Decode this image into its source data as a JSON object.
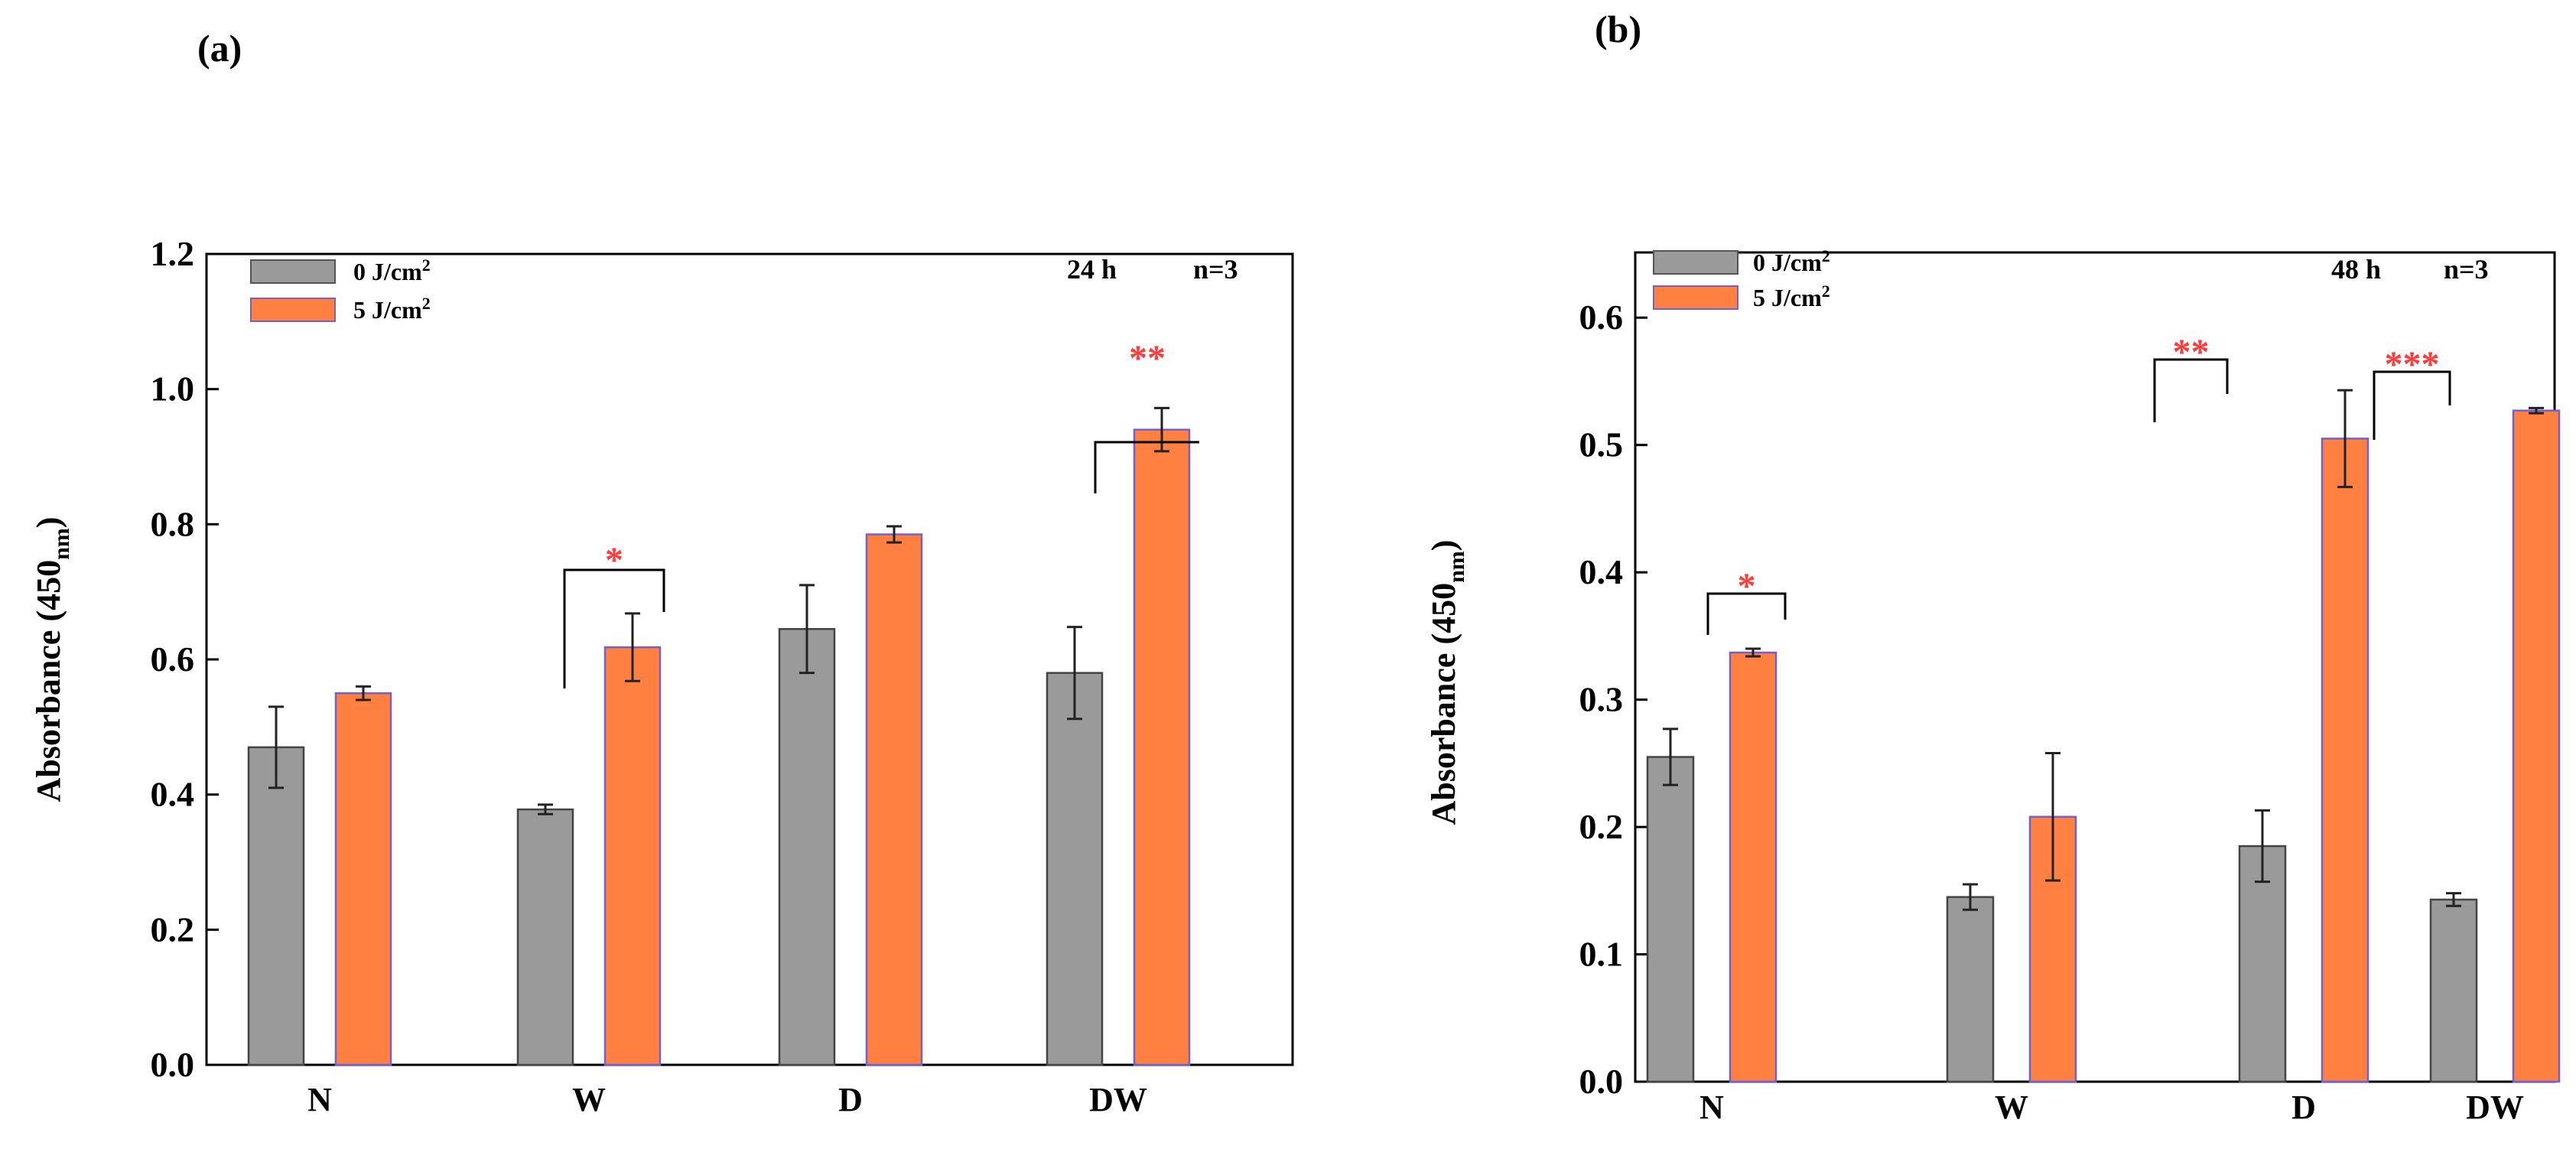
{
  "chart_data": [
    {
      "panel": "(a)",
      "type": "bar",
      "categories": [
        "N",
        "W",
        "D",
        "DW"
      ],
      "ylabel": "Absorbance (450",
      "ylabel_sub": "nm",
      "ylabel_close": ")",
      "ylim": [
        0,
        1.2
      ],
      "yticks": [
        0.0,
        0.2,
        0.4,
        0.6,
        0.8,
        1.0,
        1.2
      ],
      "ytick_labels": [
        "0.0",
        "0.2",
        "0.4",
        "0.6",
        "0.8",
        "1.0",
        "1.2"
      ],
      "annotation_time": "24 h",
      "annotation_n": "n=3",
      "series": [
        {
          "name": "0 J/cm",
          "name_sup": "2",
          "color": "#9a9a9a",
          "values": [
            0.47,
            0.378,
            0.645,
            0.58
          ],
          "errors": [
            0.06,
            0.007,
            0.065,
            0.068
          ]
        },
        {
          "name": "5 J/cm",
          "name_sup": "2",
          "color": "#ff8040",
          "values": [
            0.55,
            0.618,
            0.785,
            0.94
          ],
          "errors": [
            0.01,
            0.05,
            0.012,
            0.032
          ]
        }
      ],
      "significance": [
        {
          "category": "W",
          "label": "*"
        },
        {
          "category": "DW",
          "label": "**"
        }
      ]
    },
    {
      "panel": "(b)",
      "type": "bar",
      "categories": [
        "N",
        "W",
        "D",
        "DW"
      ],
      "ylabel": "Absorbance (450",
      "ylabel_sub": "nm",
      "ylabel_close": ")",
      "ylim": [
        0,
        0.65
      ],
      "yticks": [
        0.0,
        0.1,
        0.2,
        0.3,
        0.4,
        0.5,
        0.6
      ],
      "ytick_labels": [
        "0.0",
        "0.1",
        "0.2",
        "0.3",
        "0.4",
        "0.5",
        "0.6"
      ],
      "annotation_time": "48 h",
      "annotation_n": "n=3",
      "series": [
        {
          "name": "0 J/cm",
          "name_sup": "2",
          "color": "#9a9a9a",
          "values": [
            0.255,
            0.145,
            0.185,
            0.143
          ],
          "errors": [
            0.022,
            0.01,
            0.028,
            0.005
          ]
        },
        {
          "name": "5 J/cm",
          "name_sup": "2",
          "color": "#ff8040",
          "values": [
            0.337,
            0.208,
            0.505,
            0.527
          ],
          "errors": [
            0.003,
            0.05,
            0.038,
            0.002
          ]
        }
      ],
      "significance": [
        {
          "category": "N",
          "label": "*"
        },
        {
          "category": "D",
          "label": "**"
        },
        {
          "category": "DW",
          "label": "***"
        }
      ]
    }
  ]
}
